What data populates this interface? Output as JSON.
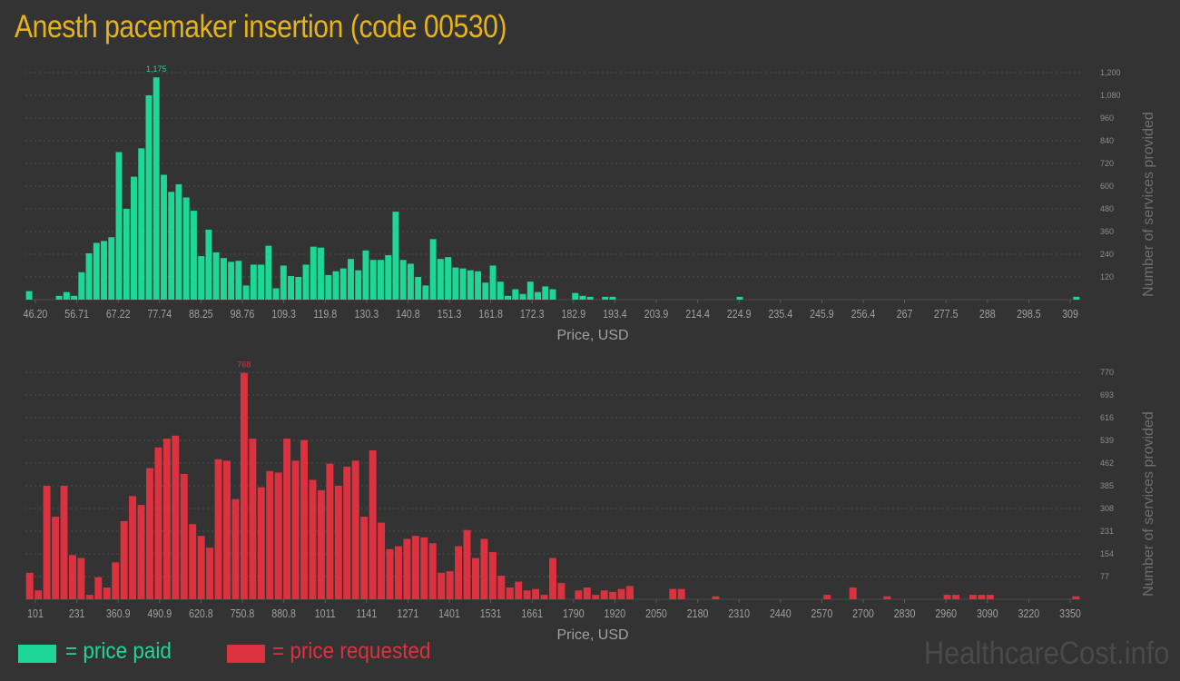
{
  "title": "Anesth pacemaker insertion (code 00530)",
  "colors": {
    "paid": "#1ed696",
    "requested": "#dc323f",
    "title": "#e8b219"
  },
  "legend": {
    "paid": "= price paid",
    "requested": "= price requested"
  },
  "watermark": "HealthcareCost.info",
  "chart_data": [
    {
      "type": "bar",
      "name": "price-paid",
      "title": "",
      "xlabel": "Price, USD",
      "ylabel": "Number of services provided",
      "ylim": [
        0,
        1200
      ],
      "grid": true,
      "y_ticks": [
        "120",
        "240",
        "360",
        "480",
        "600",
        "720",
        "840",
        "960",
        "1,080",
        "1,200"
      ],
      "x_ticks": [
        "46.20",
        "56.71",
        "67.22",
        "77.74",
        "88.25",
        "98.76",
        "109.3",
        "119.8",
        "130.3",
        "140.8",
        "151.3",
        "161.8",
        "172.3",
        "182.9",
        "193.4",
        "203.9",
        "214.4",
        "224.9",
        "235.4",
        "245.9",
        "256.4",
        "267",
        "277.5",
        "288",
        "298.5",
        "309"
      ],
      "peak_label": "1,175",
      "values": [
        45,
        0,
        0,
        0,
        20,
        40,
        20,
        145,
        245,
        300,
        310,
        330,
        780,
        480,
        650,
        800,
        1080,
        1175,
        660,
        570,
        610,
        540,
        470,
        230,
        370,
        250,
        220,
        200,
        205,
        75,
        185,
        185,
        285,
        60,
        180,
        125,
        120,
        185,
        280,
        275,
        130,
        150,
        165,
        215,
        155,
        260,
        210,
        210,
        235,
        465,
        210,
        190,
        120,
        75,
        320,
        215,
        225,
        170,
        165,
        155,
        150,
        90,
        180,
        95,
        20,
        55,
        30,
        95,
        40,
        70,
        55,
        0,
        0,
        35,
        20,
        15,
        0,
        15,
        15,
        0,
        0,
        0,
        0,
        0,
        0,
        0,
        0,
        0,
        0,
        0,
        0,
        0,
        0,
        0,
        0,
        15,
        0,
        0,
        0,
        0,
        0,
        0,
        0,
        0,
        0,
        0,
        0,
        0,
        0,
        0,
        0,
        0,
        0,
        0,
        0,
        0,
        0,
        0,
        0,
        0,
        0,
        0,
        0,
        0,
        0,
        0,
        0,
        0,
        0,
        0,
        0,
        0,
        0,
        0,
        0,
        0,
        0,
        0,
        0,
        0,
        15
      ]
    },
    {
      "type": "bar",
      "name": "price-requested",
      "title": "",
      "xlabel": "Price, USD",
      "ylabel": "Number of services provided",
      "ylim": [
        0,
        770
      ],
      "grid": true,
      "y_ticks": [
        "77",
        "154",
        "231",
        "308",
        "385",
        "462",
        "539",
        "616",
        "693",
        "770"
      ],
      "x_ticks": [
        "101",
        "231",
        "360.9",
        "490.9",
        "620.8",
        "750.8",
        "880.8",
        "1011",
        "1141",
        "1271",
        "1401",
        "1531",
        "1661",
        "1790",
        "1920",
        "2050",
        "2180",
        "2310",
        "2440",
        "2570",
        "2700",
        "2830",
        "2960",
        "3090",
        "3220",
        "3350"
      ],
      "peak_label": "768",
      "values": [
        90,
        30,
        385,
        280,
        385,
        150,
        140,
        15,
        75,
        40,
        125,
        265,
        350,
        320,
        445,
        515,
        545,
        555,
        425,
        255,
        215,
        175,
        475,
        470,
        340,
        768,
        545,
        380,
        435,
        430,
        545,
        470,
        540,
        405,
        370,
        460,
        385,
        450,
        470,
        280,
        505,
        260,
        170,
        180,
        205,
        215,
        210,
        190,
        90,
        95,
        180,
        235,
        140,
        205,
        160,
        80,
        40,
        60,
        30,
        35,
        15,
        140,
        55,
        0,
        30,
        40,
        15,
        30,
        25,
        35,
        45,
        0,
        0,
        0,
        0,
        35,
        35,
        0,
        0,
        0,
        10,
        0,
        0,
        0,
        0,
        0,
        0,
        0,
        0,
        0,
        0,
        0,
        0,
        15,
        0,
        0,
        40,
        0,
        0,
        0,
        10,
        0,
        0,
        0,
        0,
        0,
        0,
        15,
        15,
        0,
        15,
        15,
        15,
        0,
        0,
        0,
        0,
        0,
        0,
        0,
        0,
        0,
        10
      ]
    }
  ]
}
